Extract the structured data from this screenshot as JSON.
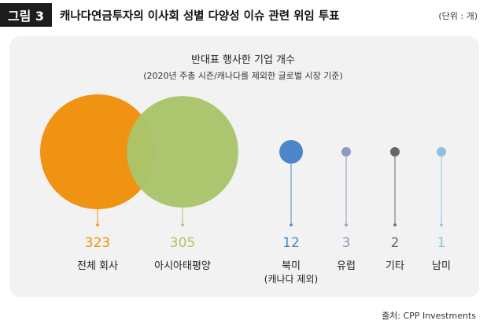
{
  "header": {
    "figure_label": "그림 3",
    "title": "캐나다연금투자의 이사회 성별 다양성 이슈 관련 위임 투표",
    "unit": "(단위 : 개)"
  },
  "source": "출처: CPP Investments",
  "chart_data": {
    "type": "bubble",
    "title": "반대표 행사한 기업 개수",
    "subtitle": "(2020년 주총 시즌/캐나다를 제외한 글로벌 시장 기준)",
    "categories": [
      {
        "label": "전체 회사",
        "sublabel": "",
        "value": 323,
        "color": "#f0900a"
      },
      {
        "label": "아시아태평양",
        "sublabel": "",
        "value": 305,
        "color": "#a9c46a"
      },
      {
        "label": "북미",
        "sublabel": "(캐나다 제외)",
        "value": 12,
        "color": "#4a86c8"
      },
      {
        "label": "유럽",
        "sublabel": "",
        "value": 3,
        "color": "#8d99c2"
      },
      {
        "label": "기타",
        "sublabel": "",
        "value": 2,
        "color": "#666666"
      },
      {
        "label": "남미",
        "sublabel": "",
        "value": 1,
        "color": "#90c0e0"
      }
    ]
  }
}
